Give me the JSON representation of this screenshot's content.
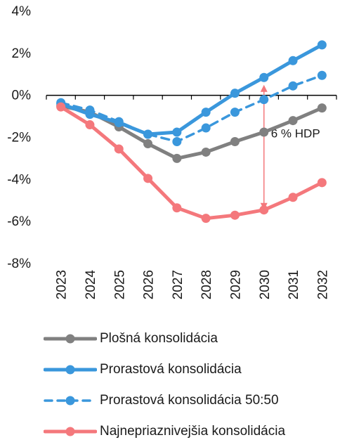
{
  "chart_data": {
    "type": "line",
    "x": [
      "2023",
      "2024",
      "2025",
      "2026",
      "2027",
      "2028",
      "2029",
      "2030",
      "2031",
      "2032"
    ],
    "ylim": [
      -8,
      4
    ],
    "yticks": [
      4,
      2,
      0,
      -2,
      -4,
      -6,
      -8
    ],
    "ytick_labels": [
      "4%",
      "2%",
      "0%",
      "-2%",
      "-4%",
      "-6%",
      "-8%"
    ],
    "grid": false,
    "legend_position": "bottom",
    "series": [
      {
        "name": "Plošná konsolidácia",
        "color": "#808080",
        "dashed": false,
        "values": [
          -0.5,
          -0.8,
          -1.5,
          -2.3,
          -3.0,
          -2.7,
          -2.2,
          -1.75,
          -1.2,
          -0.6
        ]
      },
      {
        "name": "Prorastová konsolidácia",
        "color": "#3a97dc",
        "dashed": false,
        "values": [
          -0.4,
          -0.9,
          -1.3,
          -1.85,
          -1.75,
          -0.8,
          0.1,
          0.85,
          1.65,
          2.4
        ]
      },
      {
        "name": "Prorastová konsolidácia 50:50",
        "color": "#3a97dc",
        "dashed": true,
        "values": [
          -0.35,
          -0.7,
          -1.25,
          -1.85,
          -2.2,
          -1.55,
          -0.8,
          -0.2,
          0.45,
          0.95
        ]
      },
      {
        "name": "Najnepriaznivejšia konsolidácia",
        "color": "#f4787c",
        "dashed": false,
        "values": [
          -0.55,
          -1.4,
          -2.55,
          -3.95,
          -5.35,
          -5.85,
          -5.7,
          -5.45,
          -4.85,
          -4.15
        ]
      }
    ],
    "annotations": [
      {
        "text": "6 % HDP",
        "x": "2030",
        "y_from": -5.45,
        "y_to": 0.5,
        "color": "#f4787c"
      }
    ]
  }
}
